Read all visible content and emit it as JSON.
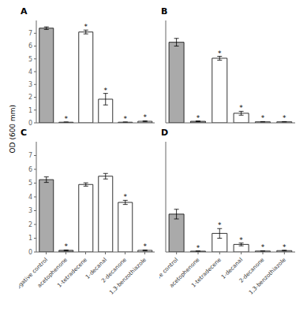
{
  "chart_data": [
    {
      "type": "bar",
      "title": "A",
      "ylabel": "OD (600 mm)",
      "categories": [
        "negative control",
        "acetophenone",
        "1-tetradecene",
        "1-decanal",
        "2-decanone",
        "1,3-benzothiazole"
      ],
      "values": [
        7.4,
        0.05,
        7.1,
        1.85,
        0.05,
        0.12
      ],
      "errors": [
        0.1,
        0.02,
        0.15,
        0.45,
        0.02,
        0.04
      ],
      "colors": [
        "#aaaaaa",
        "#aaaaaa",
        "#ffffff",
        "#ffffff",
        "#ffffff",
        "#ffffff"
      ],
      "annotations": [
        null,
        "*",
        "*",
        "*",
        "*",
        "*"
      ],
      "ylim": [
        0,
        8
      ],
      "yticks": [
        0,
        1,
        2,
        3,
        4,
        5,
        6,
        7
      ],
      "tick_labels": "y"
    },
    {
      "type": "bar",
      "title": "B",
      "categories": [
        "negative control",
        "acetophenone",
        "1-tetradecene",
        "1-decanal",
        "2-decanone",
        "1,3-benzothiazole"
      ],
      "values": [
        6.3,
        0.12,
        5.05,
        0.75,
        0.08,
        0.08
      ],
      "errors": [
        0.3,
        0.03,
        0.15,
        0.15,
        0.02,
        0.02
      ],
      "colors": [
        "#aaaaaa",
        "#aaaaaa",
        "#ffffff",
        "#ffffff",
        "#ffffff",
        "#ffffff"
      ],
      "annotations": [
        null,
        "*",
        "*",
        "*",
        "*",
        "*"
      ],
      "ylim": [
        0,
        8
      ],
      "yticks": [
        0,
        1,
        2,
        3,
        4,
        5,
        6,
        7
      ],
      "tick_labels": false
    },
    {
      "type": "bar",
      "title": "C",
      "categories": [
        "negative control",
        "acetophenone",
        "1-tetradecene",
        "1-decanal",
        "2-decanone",
        "1,3-benzothiazole"
      ],
      "values": [
        5.25,
        0.12,
        4.9,
        5.5,
        3.6,
        0.12
      ],
      "errors": [
        0.2,
        0.03,
        0.12,
        0.2,
        0.15,
        0.03
      ],
      "colors": [
        "#aaaaaa",
        "#aaaaaa",
        "#ffffff",
        "#ffffff",
        "#ffffff",
        "#ffffff"
      ],
      "annotations": [
        null,
        "*",
        null,
        null,
        "*",
        "*"
      ],
      "ylim": [
        0,
        8
      ],
      "yticks": [
        0,
        1,
        2,
        3,
        4,
        5,
        6,
        7
      ]
    },
    {
      "type": "bar",
      "title": "D",
      "categories": [
        "negative control",
        "acetophenone",
        "1-tetradecene",
        "1-decanal",
        "2-decanone",
        "1,3-benzothiazole"
      ],
      "values": [
        2.75,
        0.06,
        1.35,
        0.55,
        0.07,
        0.1
      ],
      "errors": [
        0.35,
        0.02,
        0.35,
        0.1,
        0.02,
        0.03
      ],
      "colors": [
        "#aaaaaa",
        "#aaaaaa",
        "#ffffff",
        "#ffffff",
        "#ffffff",
        "#ffffff"
      ],
      "annotations": [
        null,
        "*",
        "*",
        "*",
        "*",
        "*"
      ],
      "ylim": [
        0,
        8
      ],
      "yticks": [
        0,
        1,
        2,
        3,
        4,
        5,
        6,
        7
      ],
      "tick_labels": "x"
    }
  ]
}
